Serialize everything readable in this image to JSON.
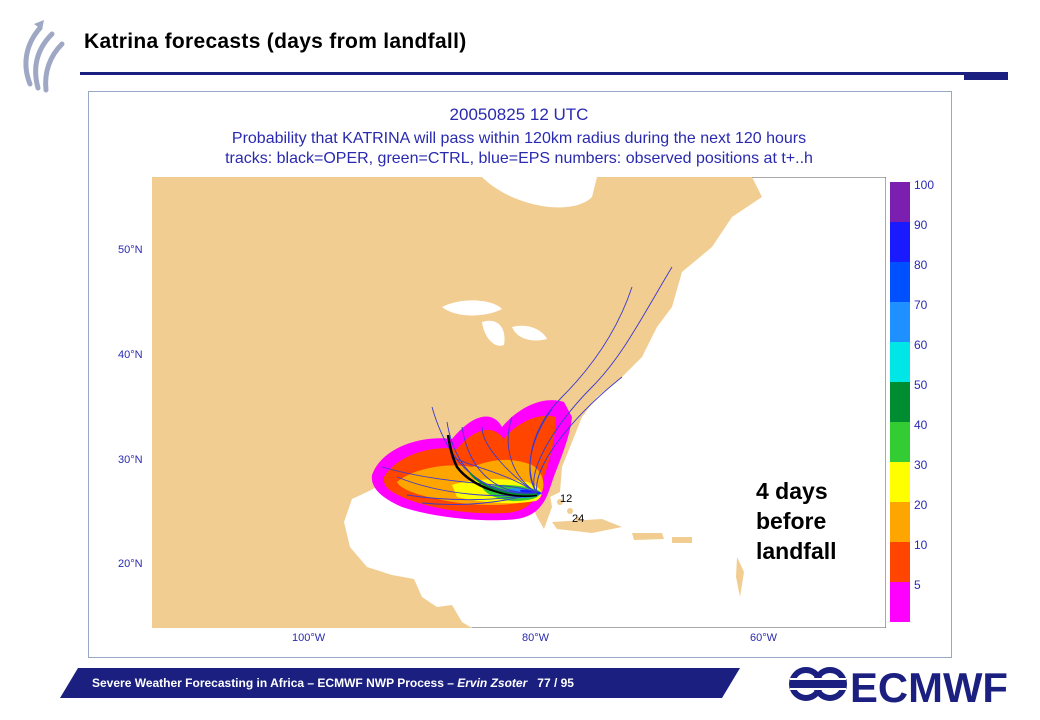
{
  "slide": {
    "title": "Katrina forecasts (days from landfall)"
  },
  "plot": {
    "header_line1": "20050825 12 UTC",
    "header_line2": "Probability that KATRINA will pass within 120km radius during the next 120 hours",
    "header_line3": "tracks: black=OPER, green=CTRL, blue=EPS numbers: observed positions at t+..h",
    "lat_labels": [
      "50°N",
      "40°N",
      "30°N",
      "20°N"
    ],
    "lon_labels": [
      "100°W",
      "80°W",
      "60°W"
    ],
    "observed_labels": [
      "12",
      "24"
    ],
    "colorbar": {
      "labels": [
        "100",
        "90",
        "80",
        "70",
        "60",
        "50",
        "40",
        "30",
        "20",
        "10",
        "5"
      ],
      "colors": [
        "#7a1fb0",
        "#1a1aff",
        "#0050ff",
        "#1e90ff",
        "#00e6e6",
        "#008c30",
        "#33cc33",
        "#ffff00",
        "#ffa500",
        "#ff4500",
        "#ff00ff"
      ]
    },
    "land_color": "#f2cd91",
    "annotation": [
      "4 days",
      "before",
      "landfall"
    ]
  },
  "footer": {
    "text_main": "Severe Weather Forecasting in Africa – ECMWF NWP Process – ",
    "text_author": "Ervin Zsoter",
    "page": "77 / 95",
    "logo_text": "ECMWF"
  }
}
